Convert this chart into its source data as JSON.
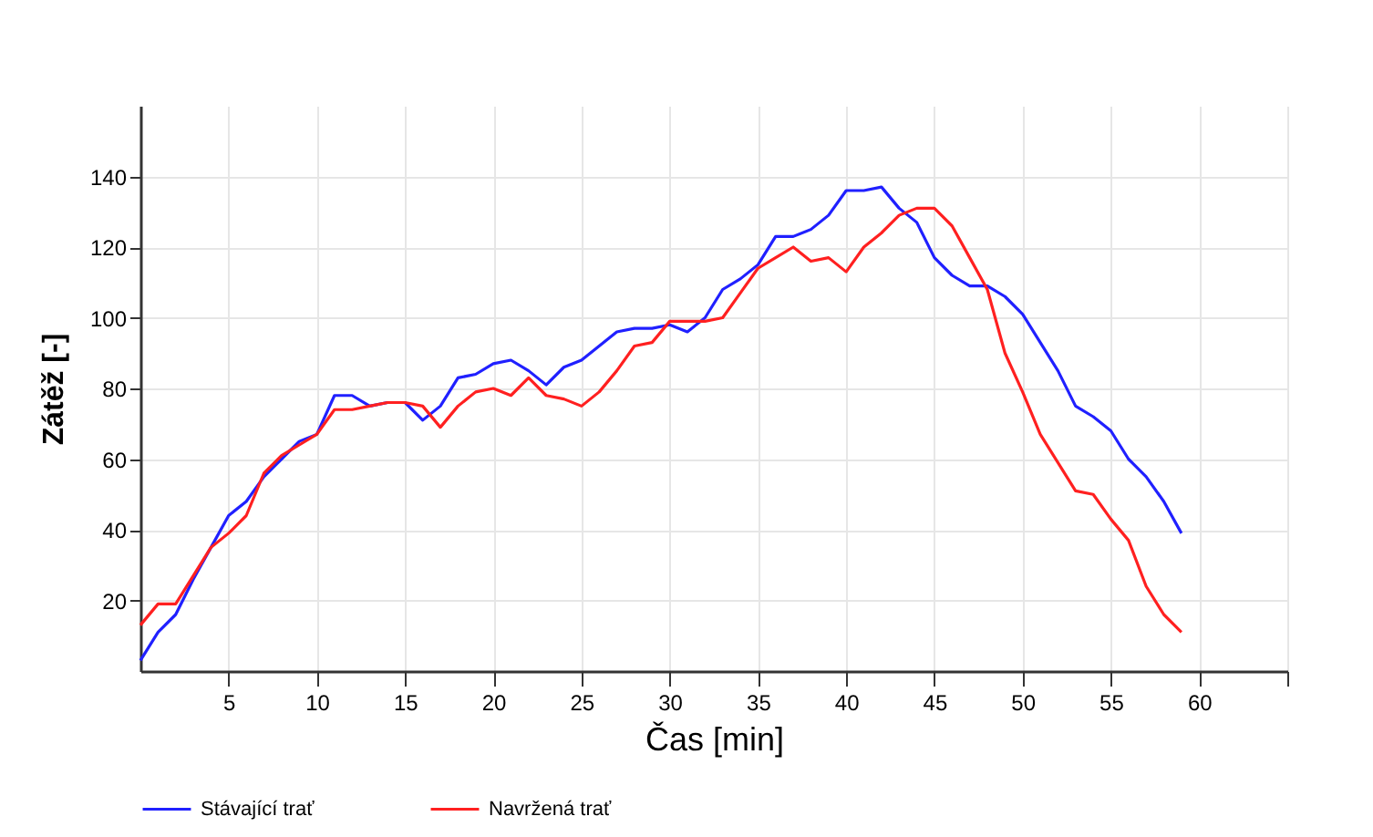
{
  "chart_data": {
    "type": "line",
    "xlabel": "Čas [min]",
    "ylabel": "Zátěž  [-]",
    "x": [
      0,
      1,
      2,
      3,
      4,
      5,
      6,
      7,
      8,
      9,
      10,
      11,
      12,
      13,
      14,
      15,
      16,
      17,
      18,
      19,
      20,
      21,
      22,
      23,
      24,
      25,
      26,
      27,
      28,
      29,
      30,
      31,
      32,
      33,
      34,
      35,
      36,
      37,
      38,
      39,
      40,
      41,
      42,
      43,
      44,
      45,
      46,
      47,
      48,
      49,
      50,
      51,
      52,
      53,
      54,
      55,
      56,
      57,
      58,
      59
    ],
    "series": [
      {
        "name": "Stávající trať",
        "color": "#2020ff",
        "values": [
          3,
          11,
          16,
          26,
          35,
          44,
          48,
          55,
          60,
          65,
          67,
          78,
          78,
          75,
          76,
          76,
          71,
          75,
          83,
          84,
          87,
          88,
          85,
          81,
          86,
          88,
          92,
          96,
          97,
          97,
          98,
          96,
          100,
          108,
          111,
          115,
          123,
          123,
          125,
          129,
          136,
          136,
          137,
          131,
          127,
          117,
          112,
          109,
          109,
          106,
          101,
          93,
          85,
          75,
          72,
          68,
          60,
          55,
          48,
          39
        ]
      },
      {
        "name": "Navržená trať",
        "color": "#ff2020",
        "values": [
          13,
          19,
          19,
          27,
          35,
          39,
          44,
          56,
          61,
          64,
          67,
          74,
          74,
          75,
          76,
          76,
          75,
          69,
          75,
          79,
          80,
          78,
          83,
          78,
          77,
          75,
          79,
          85,
          92,
          93,
          99,
          99,
          99,
          100,
          107,
          114,
          117,
          120,
          116,
          117,
          113,
          120,
          124,
          129,
          131,
          131,
          126,
          117,
          108,
          90,
          79,
          67,
          59,
          51,
          50,
          43,
          37,
          24,
          16,
          11
        ]
      }
    ],
    "xlim": [
      0,
      65
    ],
    "xticks": [
      5,
      10,
      15,
      20,
      25,
      30,
      35,
      40,
      45,
      50,
      55,
      60,
      {
        "value": 65,
        "label": null
      }
    ],
    "ylim": [
      0,
      160
    ],
    "yticks": [
      20,
      40,
      60,
      80,
      100,
      120,
      140
    ],
    "grid": true,
    "legend": "bottom",
    "marker": "none",
    "line_style": "solid"
  }
}
